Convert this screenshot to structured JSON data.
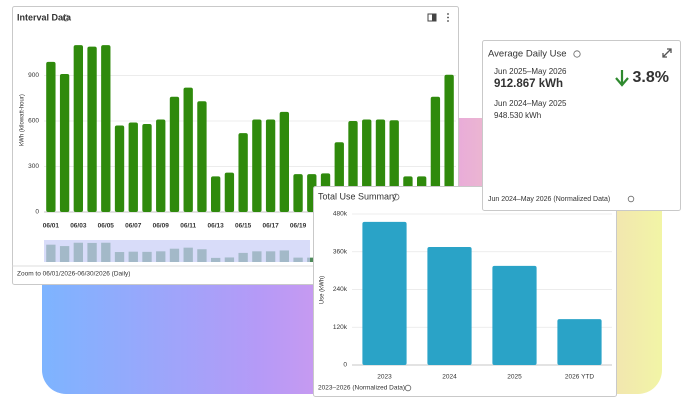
{
  "chart_data": [
    {
      "type": "bar",
      "title": "Interval Data",
      "y_label": "kWh (kilowatt-hour)",
      "footer": "Zoom to 06/01/2026-06/30/2026 (Daily)",
      "categories": [
        "06/01",
        null,
        "06/03",
        null,
        "06/05",
        null,
        "06/07",
        null,
        "06/09",
        null,
        "06/11",
        null,
        "06/13",
        null,
        "06/15",
        null,
        "06/17",
        null,
        "06/19",
        null,
        null,
        null,
        null,
        null,
        null,
        null,
        null,
        null,
        null,
        null
      ],
      "values": [
        990,
        910,
        1100,
        1090,
        1100,
        570,
        590,
        580,
        610,
        760,
        820,
        730,
        235,
        260,
        520,
        610,
        610,
        660,
        250,
        250,
        255,
        460,
        600,
        610,
        610,
        605,
        235,
        235,
        760,
        905
      ],
      "color": "#2f8a0c",
      "ylim": [
        0,
        1200
      ],
      "yticks": [
        0,
        300,
        600,
        900
      ],
      "grid": true
    },
    {
      "type": "bar",
      "title": "Total Use Summary",
      "y_label": "Use (kWh)",
      "footer": "2023–2026 (Normalized Data)",
      "categories": [
        "2023",
        "2024",
        "2025",
        "2026 YTD"
      ],
      "values": [
        455000,
        375000,
        315000,
        146000
      ],
      "color": "#2aa3c7",
      "ylim": [
        0,
        480000
      ],
      "yticks": [
        0,
        {
          "value": 120000,
          "label": "120k"
        },
        {
          "value": 240000,
          "label": "240k"
        },
        {
          "value": 360000,
          "label": "360k"
        },
        {
          "value": 480000,
          "label": "480k"
        }
      ],
      "grid": true
    }
  ],
  "average_daily_use": {
    "title": "Average Daily Use",
    "current_period": "Jun 2025–May 2026",
    "current_value": "912.867 kWh",
    "change": "3.8%",
    "previous_period": "Jun 2024–May 2025",
    "previous_value": "948.530 kWh",
    "footer": "Jun 2024–May 2026 (Normalized Data)"
  }
}
